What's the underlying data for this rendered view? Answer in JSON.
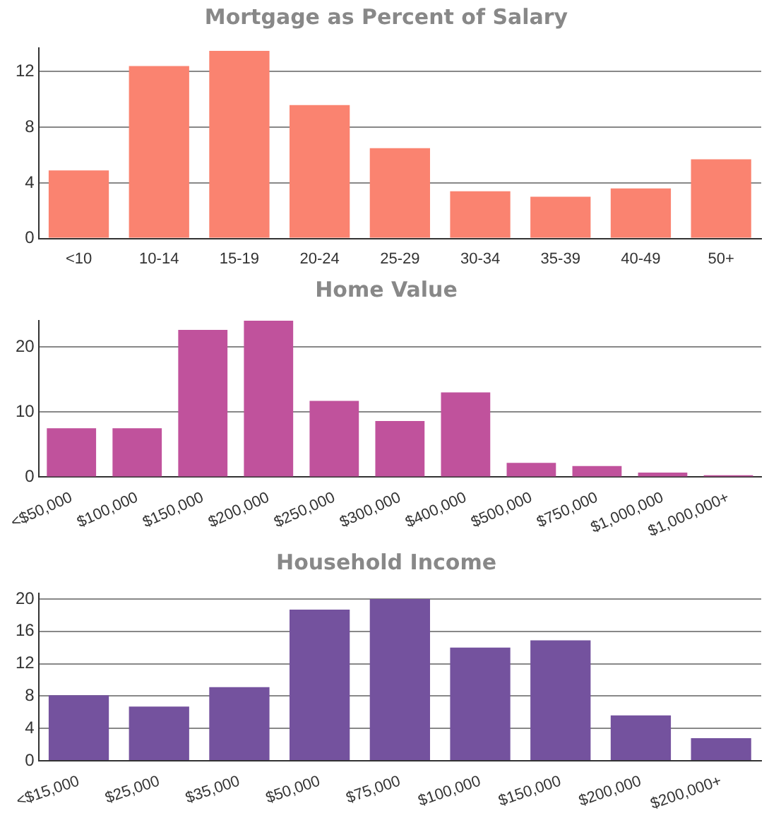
{
  "chart_data": [
    {
      "type": "bar",
      "title": "Mortgage as Percent of Salary",
      "categories": [
        "<10",
        "10-14",
        "15-19",
        "20-24",
        "25-29",
        "30-34",
        "35-39",
        "40-49",
        "50+"
      ],
      "values": [
        4.9,
        12.4,
        13.5,
        9.6,
        6.5,
        3.4,
        3.0,
        3.6,
        5.7
      ],
      "color": "#fa8370",
      "ylim": [
        0,
        13.7
      ],
      "yticks": [
        0,
        4,
        8,
        12
      ],
      "grid": "y"
    },
    {
      "type": "bar",
      "title": "Home Value",
      "categories": [
        "<$50,000",
        "$100,000",
        "$150,000",
        "$200,000",
        "$250,000",
        "$300,000",
        "$400,000",
        "$500,000",
        "$750,000",
        "$1,000,000",
        "$1,000,000+"
      ],
      "values": [
        7.5,
        7.5,
        22.6,
        24.0,
        11.7,
        8.6,
        13.0,
        2.2,
        1.7,
        0.7,
        0.3
      ],
      "color": "#c0529c",
      "ylim": [
        0,
        24
      ],
      "yticks": [
        0,
        10,
        20
      ],
      "grid": "y"
    },
    {
      "type": "bar",
      "title": "Household Income",
      "categories": [
        "<$15,000",
        "$25,000",
        "$35,000",
        "$50,000",
        "$75,000",
        "$100,000",
        "$150,000",
        "$200,000",
        "$200,000+"
      ],
      "values": [
        8.1,
        6.7,
        9.1,
        18.7,
        20.0,
        14.0,
        14.9,
        5.6,
        2.8
      ],
      "color": "#74529e",
      "ylim": [
        0,
        20.7
      ],
      "yticks": [
        0,
        4,
        8,
        12,
        16,
        20
      ],
      "grid": "y"
    }
  ]
}
